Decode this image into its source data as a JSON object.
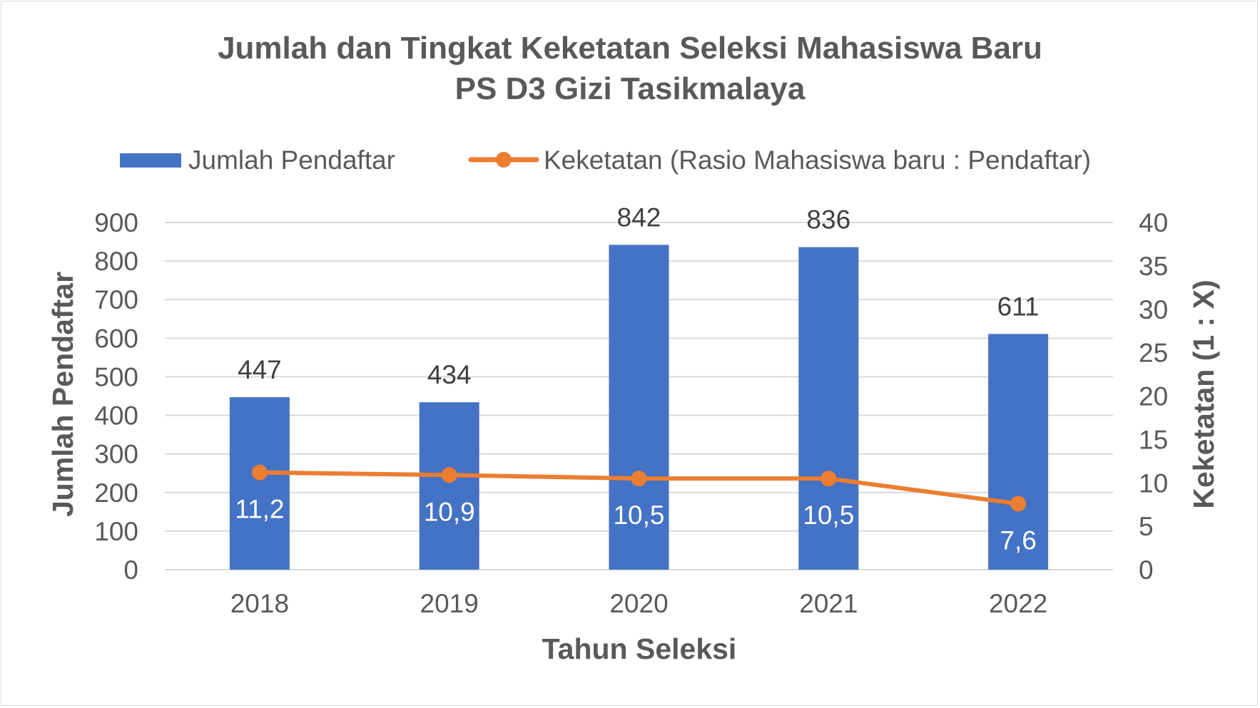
{
  "chart_data": {
    "type": "bar",
    "title": "Jumlah dan Tingkat Keketatan Seleksi Mahasiswa Baru",
    "subtitle": "PS D3 Gizi Tasikmalaya",
    "xlabel": "Tahun Seleksi",
    "ylabel": "Jumlah Pendaftar",
    "y2label": "Keketatan (1 : X)",
    "categories": [
      "2018",
      "2019",
      "2020",
      "2021",
      "2022"
    ],
    "ylim": [
      0,
      900
    ],
    "yticks": [
      "0",
      "100",
      "200",
      "300",
      "400",
      "500",
      "600",
      "700",
      "800",
      "900"
    ],
    "y2lim": [
      0,
      40
    ],
    "y2ticks": [
      "0",
      "5",
      "10",
      "15",
      "20",
      "25",
      "30",
      "35",
      "40"
    ],
    "grid": true,
    "legend_position": "top",
    "series": [
      {
        "name": "Jumlah Pendaftar",
        "type": "bar",
        "axis": "left",
        "color": "#4472c4",
        "values": [
          447,
          434,
          842,
          836,
          611
        ],
        "labels": [
          "447",
          "434",
          "842",
          "836",
          "611"
        ]
      },
      {
        "name": "Keketatan (Rasio Mahasiswa baru : Pendaftar)",
        "type": "line",
        "axis": "right",
        "color": "#ed7d31",
        "values": [
          11.2,
          10.9,
          10.5,
          10.5,
          7.6
        ],
        "labels": [
          "11,2",
          "10,9",
          "10,5",
          "10,5",
          "7,6"
        ]
      }
    ]
  }
}
